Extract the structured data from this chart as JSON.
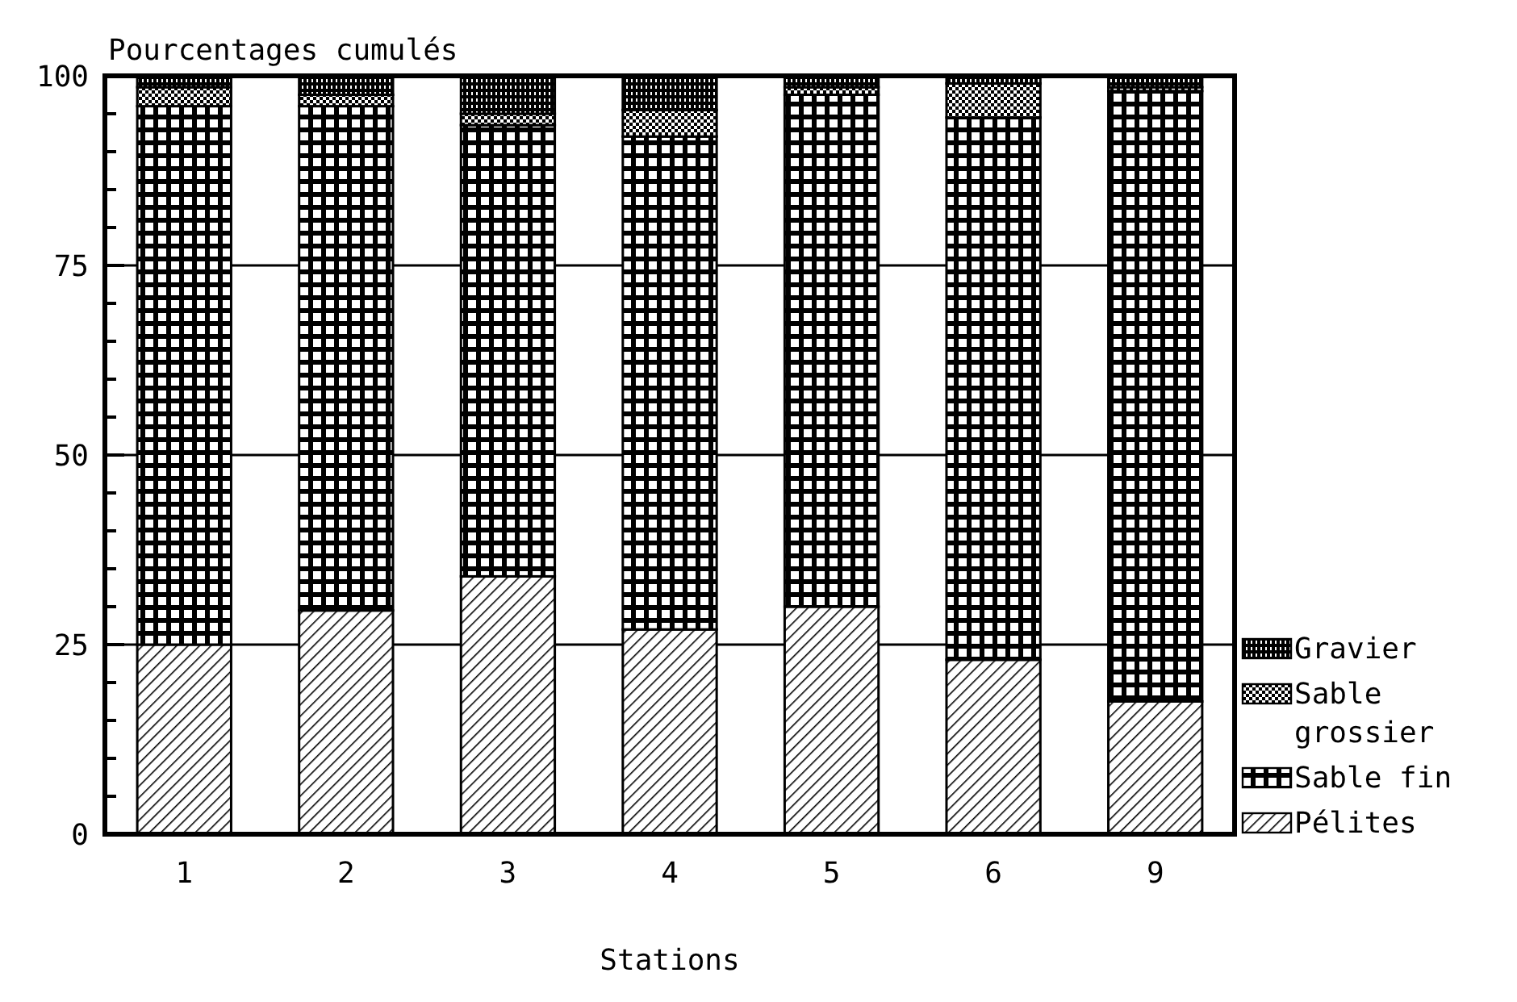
{
  "chart_data": {
    "type": "bar",
    "stacked": true,
    "ylabel": "Pourcentages cumulés",
    "xlabel": "Stations",
    "categories": [
      "1",
      "2",
      "3",
      "4",
      "5",
      "6",
      "9"
    ],
    "series": [
      {
        "name": "Pélites",
        "color": "#000000",
        "values": [
          25,
          29.5,
          34,
          27,
          30,
          23,
          17.5
        ]
      },
      {
        "name": "Sable fin",
        "color": "#000000",
        "values": [
          71,
          66.5,
          59.5,
          65,
          67.5,
          71.5,
          80.5
        ]
      },
      {
        "name": "Sable grossier",
        "color": "#000000",
        "values": [
          2.5,
          1.5,
          1.5,
          3.5,
          1,
          4.5,
          0.5
        ]
      },
      {
        "name": "Gravier",
        "color": "#000000",
        "values": [
          1.5,
          2.5,
          5,
          4.5,
          1.5,
          1,
          1.5
        ]
      }
    ],
    "ylim": [
      0,
      100
    ],
    "yticks": [
      0,
      {
        "value": 5,
        "label": null
      },
      {
        "value": 10,
        "label": null
      },
      {
        "value": 15,
        "label": null
      },
      {
        "value": 20,
        "label": null
      },
      25,
      {
        "value": 30,
        "label": null
      },
      {
        "value": 35,
        "label": null
      },
      {
        "value": 40,
        "label": null
      },
      {
        "value": 45,
        "label": null
      },
      50,
      {
        "value": 55,
        "label": null
      },
      {
        "value": 60,
        "label": null
      },
      {
        "value": 65,
        "label": null
      },
      {
        "value": 70,
        "label": null
      },
      75,
      {
        "value": 80,
        "label": null
      },
      {
        "value": 85,
        "label": null
      },
      {
        "value": 90,
        "label": null
      },
      {
        "value": 95,
        "label": null
      },
      100
    ],
    "grid": "y",
    "legend": "right"
  }
}
